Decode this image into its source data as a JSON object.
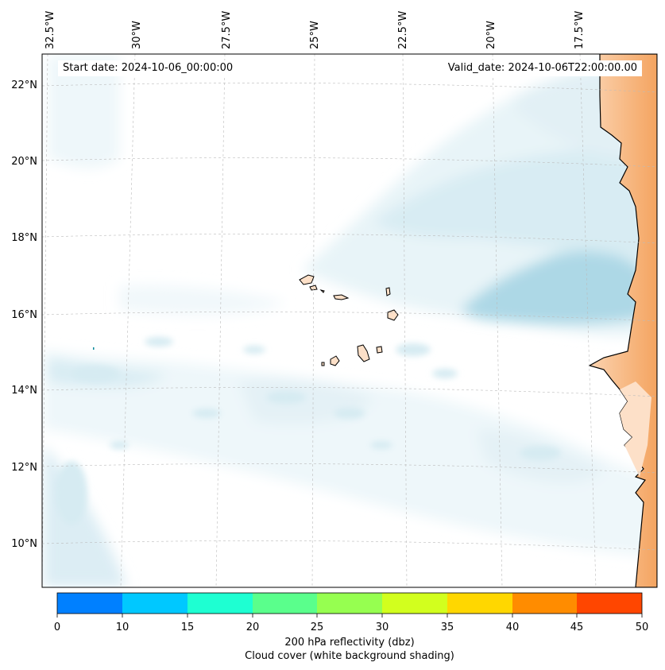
{
  "map": {
    "start_date": "Start date: 2024-10-06_00:00:00",
    "valid_date": "Valid_date: 2024-10-06T22:00:00.00",
    "lon_ticks": [
      "32.5°W",
      "30°W",
      "27.5°W",
      "25°W",
      "22.5°W",
      "20°W",
      "17.5°W"
    ],
    "lat_ticks": [
      "22°N",
      "20°N",
      "18°N",
      "16°N",
      "14°N",
      "12°N",
      "10°N"
    ],
    "colors": {
      "cloud_light": "#e8f4f8",
      "cloud_mid": "#cde6ef",
      "cloud_dense": "#add8e6",
      "land_warm": "#f4a460",
      "land_pale": "#fde0c8",
      "grid": "#bbbbbb",
      "coast": "#000000"
    }
  },
  "colorbar": {
    "ticks": [
      "0",
      "10",
      "15",
      "20",
      "25",
      "30",
      "35",
      "40",
      "45",
      "50"
    ],
    "colors": [
      "#0080ff",
      "#00c8ff",
      "#1effd2",
      "#5aff8c",
      "#96ff50",
      "#d2ff1e",
      "#ffd700",
      "#ff8c00",
      "#ff4600"
    ],
    "label_line1": "200 hPa reflectivity (dbz)",
    "label_line2": "Cloud cover (white background shading)"
  }
}
